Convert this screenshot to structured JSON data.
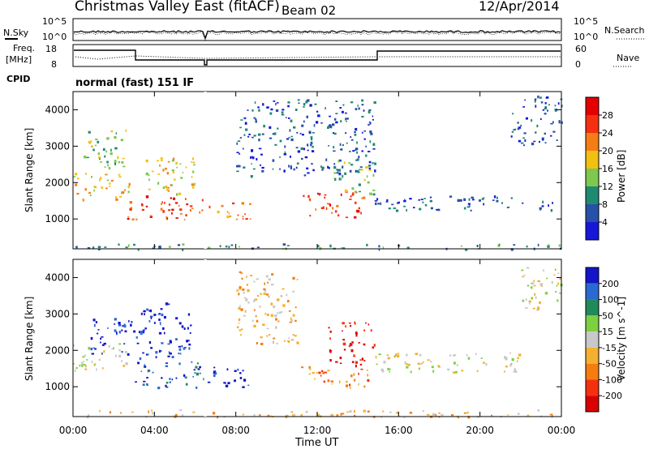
{
  "header": {
    "title": "Christmas Valley East (fitACF)",
    "beam": "Beam 02",
    "date": "12/Apr/2014"
  },
  "top_panels": {
    "nsky_label": "N.Sky",
    "nsky_left_top": "10^5",
    "nsky_left_bottom": "10^0",
    "nsky_right_top": "10^5",
    "nsky_right_bottom": "10^0",
    "nsearch_label": "N.Search",
    "freq_label": "Freq.",
    "freq_unit": "[MHz]",
    "freq_left_top": "18",
    "freq_left_bottom": "8",
    "nave_right_top": "60",
    "nave_right_bottom": "0",
    "nave_label": "Nave",
    "cpid_label": "CPID",
    "cpid_value": "normal (fast) 151 IF"
  },
  "chart_data": [
    {
      "type": "heatmap",
      "name": "power",
      "ylabel": "Slant Range [km]",
      "ylim": [
        180,
        4500
      ],
      "yticks": [
        "1000",
        "2000",
        "3000",
        "4000"
      ],
      "colorbar_label": "Power [dB]",
      "colorbar_ticks": [
        "4",
        "8",
        "12",
        "16",
        "20",
        "24",
        "28"
      ],
      "colors": [
        "#1717d9",
        "#2850a8",
        "#1f8a72",
        "#7ec850",
        "#f2c010",
        "#f57d15",
        "#f53010",
        "#e40000"
      ],
      "blobs": [
        {
          "t0": 0.0,
          "t1": 2.8,
          "r0": 1550,
          "r1": 2300,
          "level": 4
        },
        {
          "t0": 0.5,
          "t1": 2.6,
          "r0": 2400,
          "r1": 3500,
          "level": 3
        },
        {
          "t0": 2.6,
          "t1": 6.5,
          "r0": 1000,
          "r1": 1650,
          "level": 6
        },
        {
          "t0": 3.5,
          "t1": 6.0,
          "r0": 1700,
          "r1": 2800,
          "level": 4
        },
        {
          "t0": 6.6,
          "t1": 8.8,
          "r0": 1000,
          "r1": 1500,
          "level": 5
        },
        {
          "t0": 8.0,
          "t1": 14.8,
          "r0": 2200,
          "r1": 4300,
          "level": 1
        },
        {
          "t0": 11.2,
          "t1": 14.3,
          "r0": 1050,
          "r1": 1800,
          "level": 6
        },
        {
          "t0": 12.8,
          "t1": 14.8,
          "r0": 1700,
          "r1": 2700,
          "level": 3
        },
        {
          "t0": 14.8,
          "t1": 24.0,
          "r0": 1250,
          "r1": 1650,
          "level": 1
        },
        {
          "t0": 21.5,
          "t1": 24.0,
          "r0": 3000,
          "r1": 4400,
          "level": 1
        },
        {
          "t0": 0.0,
          "t1": 24.0,
          "r0": 180,
          "r1": 330,
          "level": 2
        }
      ]
    },
    {
      "type": "heatmap",
      "name": "velocity",
      "ylabel": "Slant Range [km]",
      "ylim": [
        180,
        4500
      ],
      "yticks": [
        "1000",
        "2000",
        "3000",
        "4000"
      ],
      "colorbar_label": "Velocity [m s^-1]",
      "colorbar_ticks": [
        "200",
        "100",
        "50",
        "15",
        "-15",
        "-50",
        "-100",
        "-200"
      ],
      "colors": [
        "#1414c8",
        "#2a6ad0",
        "#208a5a",
        "#7dd040",
        "#c8c8c8",
        "#f5b030",
        "#f57d10",
        "#f53010",
        "#d80000"
      ],
      "blobs": [
        {
          "t0": 0.0,
          "t1": 2.8,
          "r0": 1450,
          "r1": 2200,
          "level": 4
        },
        {
          "t0": 0.8,
          "t1": 3.2,
          "r0": 1900,
          "r1": 2900,
          "level": 0
        },
        {
          "t0": 3.0,
          "t1": 6.4,
          "r0": 1000,
          "r1": 1700,
          "level": 1
        },
        {
          "t0": 3.2,
          "t1": 5.8,
          "r0": 1800,
          "r1": 3400,
          "level": 0
        },
        {
          "t0": 6.6,
          "t1": 8.8,
          "r0": 1000,
          "r1": 1550,
          "level": 0
        },
        {
          "t0": 8.0,
          "t1": 11.0,
          "r0": 2200,
          "r1": 4200,
          "level": 5
        },
        {
          "t0": 11.2,
          "t1": 14.5,
          "r0": 1000,
          "r1": 1600,
          "level": 6
        },
        {
          "t0": 12.5,
          "t1": 14.8,
          "r0": 1600,
          "r1": 2800,
          "level": 8
        },
        {
          "t0": 14.8,
          "t1": 22.0,
          "r0": 1400,
          "r1": 1950,
          "level": 4
        },
        {
          "t0": 22.0,
          "t1": 24.0,
          "r0": 3000,
          "r1": 4300,
          "level": 4
        },
        {
          "t0": 0.0,
          "t1": 24.0,
          "r0": 180,
          "r1": 380,
          "level": 5
        }
      ]
    }
  ],
  "x_axis": {
    "ticks": [
      "00:00",
      "04:00",
      "08:00",
      "12:00",
      "16:00",
      "20:00",
      "00:00"
    ],
    "label": "Time UT"
  }
}
